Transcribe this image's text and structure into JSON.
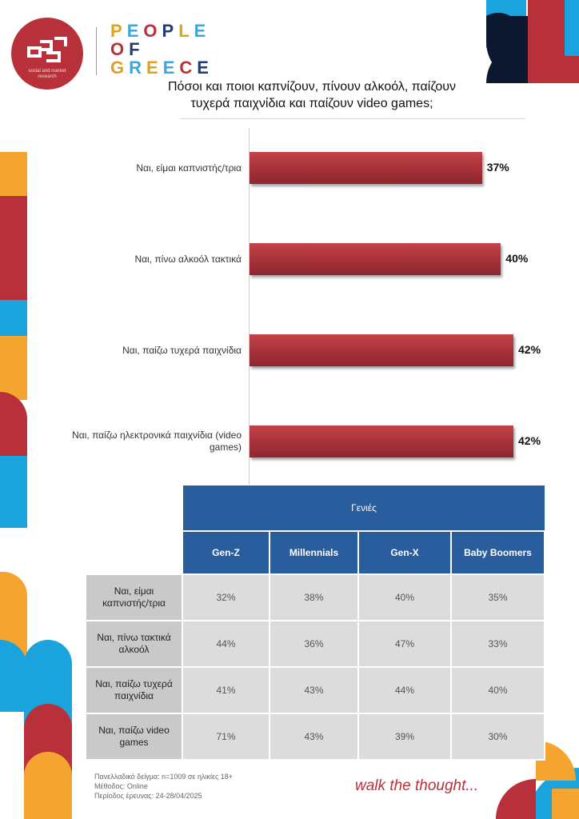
{
  "header": {
    "logo_caption": "social and market research",
    "wordmark": [
      "PEOPLE",
      "OF",
      "GREECE"
    ]
  },
  "title_line1": "Πόσοι και ποιοι καπνίζουν, πίνουν αλκοόλ, παίζουν",
  "title_line2": "τυχερά παιχνίδια και παίζουν video games;",
  "chart_data": {
    "type": "bar",
    "orientation": "horizontal",
    "categories": [
      "Ναι, είμαι καπνιστής/τρια",
      "Ναι, πίνω αλκοόλ τακτικά",
      "Ναι, παίζω τυχερά παιχνίδια",
      "Ναι, παίζω ηλεκτρονικά παιχνίδια (video games)"
    ],
    "values": [
      37,
      40,
      42,
      42
    ],
    "value_labels": [
      "37%",
      "40%",
      "42%",
      "42%"
    ],
    "xlim": [
      0,
      42
    ],
    "grid": false,
    "bar_color": "#a8323a"
  },
  "table": {
    "group_header": "Γενιές",
    "columns": [
      "Gen-Z",
      "Millennials",
      "Gen-X",
      "Baby Boomers"
    ],
    "rows": [
      {
        "label_l1": "Ναι, είμαι",
        "label_l2": "καπνιστής/τρια",
        "cells": [
          "32%",
          "38%",
          "40%",
          "35%"
        ]
      },
      {
        "label_l1": "Ναι, πίνω τακτικά",
        "label_l2": "αλκοόλ",
        "cells": [
          "44%",
          "36%",
          "47%",
          "33%"
        ]
      },
      {
        "label_l1": "Ναι, παίζω τυχερά",
        "label_l2": "παιχνίδια",
        "cells": [
          "41%",
          "43%",
          "44%",
          "40%"
        ]
      },
      {
        "label_l1": "Ναι, παίζω video",
        "label_l2": "games",
        "cells": [
          "71%",
          "43%",
          "39%",
          "30%"
        ]
      }
    ]
  },
  "footer": {
    "sample": "Πανελλαδικό δείγμα: n=1009 σε ηλικίες 18+",
    "method": "Μέθοδος: Online",
    "period": "Περίοδος έρευνας: 24-28/04/2025",
    "tagline": "walk the thought..."
  },
  "colors": {
    "brand_red": "#b8313a",
    "brand_blue": "#2a5d9e",
    "accent_orange": "#f3a530",
    "accent_cyan": "#1aa3dd",
    "navy": "#0c1730"
  }
}
